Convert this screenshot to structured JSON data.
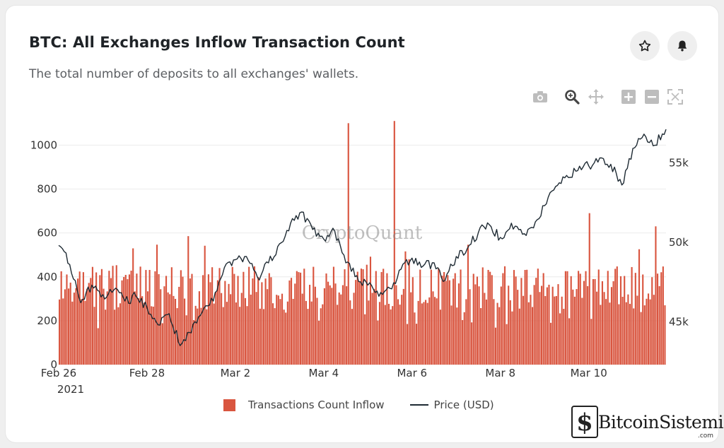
{
  "header": {
    "title": "BTC: All Exchanges Inflow Transaction Count",
    "subtitle": "The total number of deposits to all exchanges' wallets."
  },
  "actions": {
    "favorite_icon": "star-outline-icon",
    "alert_icon": "bell-icon"
  },
  "toolbar": {
    "icons": [
      "camera-icon",
      "zoom-icon",
      "pan-icon",
      "zoom-in-icon",
      "zoom-out-icon",
      "autoscale-icon"
    ]
  },
  "watermark": "CryptoQuant",
  "brand": {
    "name": "BitcoinSistemi",
    "suffix": ".com"
  },
  "colors": {
    "bars": "#d9553f",
    "price_line": "#1e2a33",
    "grid": "#ececec"
  },
  "chart_data": {
    "type": "bar",
    "x_tick_labels": [
      "Feb 26",
      "Feb 28",
      "Mar 2",
      "Mar 4",
      "Mar 6",
      "Mar 8",
      "Mar 10"
    ],
    "x_year_label": "2021",
    "x_ticks": [
      "2021-02-26",
      "2021-02-28",
      "2021-03-02",
      "2021-03-04",
      "2021-03-06",
      "2021-03-08",
      "2021-03-10"
    ],
    "x_range": [
      "2021-02-26",
      "2021-03-11T18:00"
    ],
    "y_left": {
      "ticks": [
        0,
        200,
        400,
        600,
        800,
        1000
      ],
      "ylim": [
        0,
        1130
      ]
    },
    "y_right": {
      "tick_labels": [
        "45k",
        "50k",
        "55k"
      ],
      "ticks": [
        45000,
        50000,
        55000
      ],
      "ylim": [
        42300,
        57900
      ]
    },
    "grid": true,
    "legend_position": "bottom-center",
    "series": [
      {
        "name": "Transactions Count Inflow",
        "kind": "bar",
        "axis": "left",
        "interval": "hourly",
        "approx_baseline_range": [
          250,
          450
        ],
        "approx_peak": 630,
        "spikes": [
          {
            "x": "2021-03-04T13:00",
            "value": 1100
          },
          {
            "x": "2021-03-05T14:00",
            "value": 1110
          },
          {
            "x": "2021-03-10T00:00",
            "value": 690
          },
          {
            "x": "2021-03-11T12:00",
            "value": 630
          }
        ]
      },
      {
        "name": "Price (USD)",
        "kind": "line",
        "axis": "right",
        "points": [
          [
            "2021-02-26T00:00",
            49800
          ],
          [
            "2021-02-26T06:00",
            48600
          ],
          [
            "2021-02-26T12:00",
            46200
          ],
          [
            "2021-02-26T18:00",
            47300
          ],
          [
            "2021-02-27T00:00",
            46700
          ],
          [
            "2021-02-27T06:00",
            47000
          ],
          [
            "2021-02-27T12:00",
            46300
          ],
          [
            "2021-02-27T18:00",
            46600
          ],
          [
            "2021-02-28T00:00",
            45900
          ],
          [
            "2021-02-28T06:00",
            44800
          ],
          [
            "2021-02-28T12:00",
            45500
          ],
          [
            "2021-02-28T18:00",
            43500
          ],
          [
            "2021-03-01T00:00",
            44300
          ],
          [
            "2021-03-01T06:00",
            45600
          ],
          [
            "2021-03-01T12:00",
            46300
          ],
          [
            "2021-03-01T18:00",
            48400
          ],
          [
            "2021-03-02T00:00",
            48900
          ],
          [
            "2021-03-02T06:00",
            49100
          ],
          [
            "2021-03-02T12:00",
            47800
          ],
          [
            "2021-03-02T18:00",
            48700
          ],
          [
            "2021-03-03T00:00",
            49900
          ],
          [
            "2021-03-03T06:00",
            51200
          ],
          [
            "2021-03-03T12:00",
            51900
          ],
          [
            "2021-03-03T18:00",
            50800
          ],
          [
            "2021-03-04T00:00",
            50200
          ],
          [
            "2021-03-04T06:00",
            50700
          ],
          [
            "2021-03-04T12:00",
            48700
          ],
          [
            "2021-03-04T18:00",
            47900
          ],
          [
            "2021-03-05T00:00",
            47300
          ],
          [
            "2021-03-05T06:00",
            46600
          ],
          [
            "2021-03-05T12:00",
            47100
          ],
          [
            "2021-03-05T18:00",
            48300
          ],
          [
            "2021-03-06T00:00",
            49000
          ],
          [
            "2021-03-06T06:00",
            48500
          ],
          [
            "2021-03-06T12:00",
            48700
          ],
          [
            "2021-03-06T18:00",
            47600
          ],
          [
            "2021-03-07T00:00",
            49100
          ],
          [
            "2021-03-07T06:00",
            49600
          ],
          [
            "2021-03-07T12:00",
            50600
          ],
          [
            "2021-03-07T18:00",
            51100
          ],
          [
            "2021-03-08T00:00",
            50300
          ],
          [
            "2021-03-08T06:00",
            51200
          ],
          [
            "2021-03-08T12:00",
            50500
          ],
          [
            "2021-03-08T18:00",
            50900
          ],
          [
            "2021-03-09T00:00",
            52300
          ],
          [
            "2021-03-09T06:00",
            53500
          ],
          [
            "2021-03-09T12:00",
            54200
          ],
          [
            "2021-03-09T18:00",
            54500
          ],
          [
            "2021-03-10T00:00",
            54800
          ],
          [
            "2021-03-10T06:00",
            55300
          ],
          [
            "2021-03-10T12:00",
            54900
          ],
          [
            "2021-03-10T18:00",
            53600
          ],
          [
            "2021-03-11T00:00",
            55900
          ],
          [
            "2021-03-11T06:00",
            56800
          ],
          [
            "2021-03-11T12:00",
            56100
          ],
          [
            "2021-03-11T18:00",
            57100
          ]
        ]
      }
    ]
  }
}
